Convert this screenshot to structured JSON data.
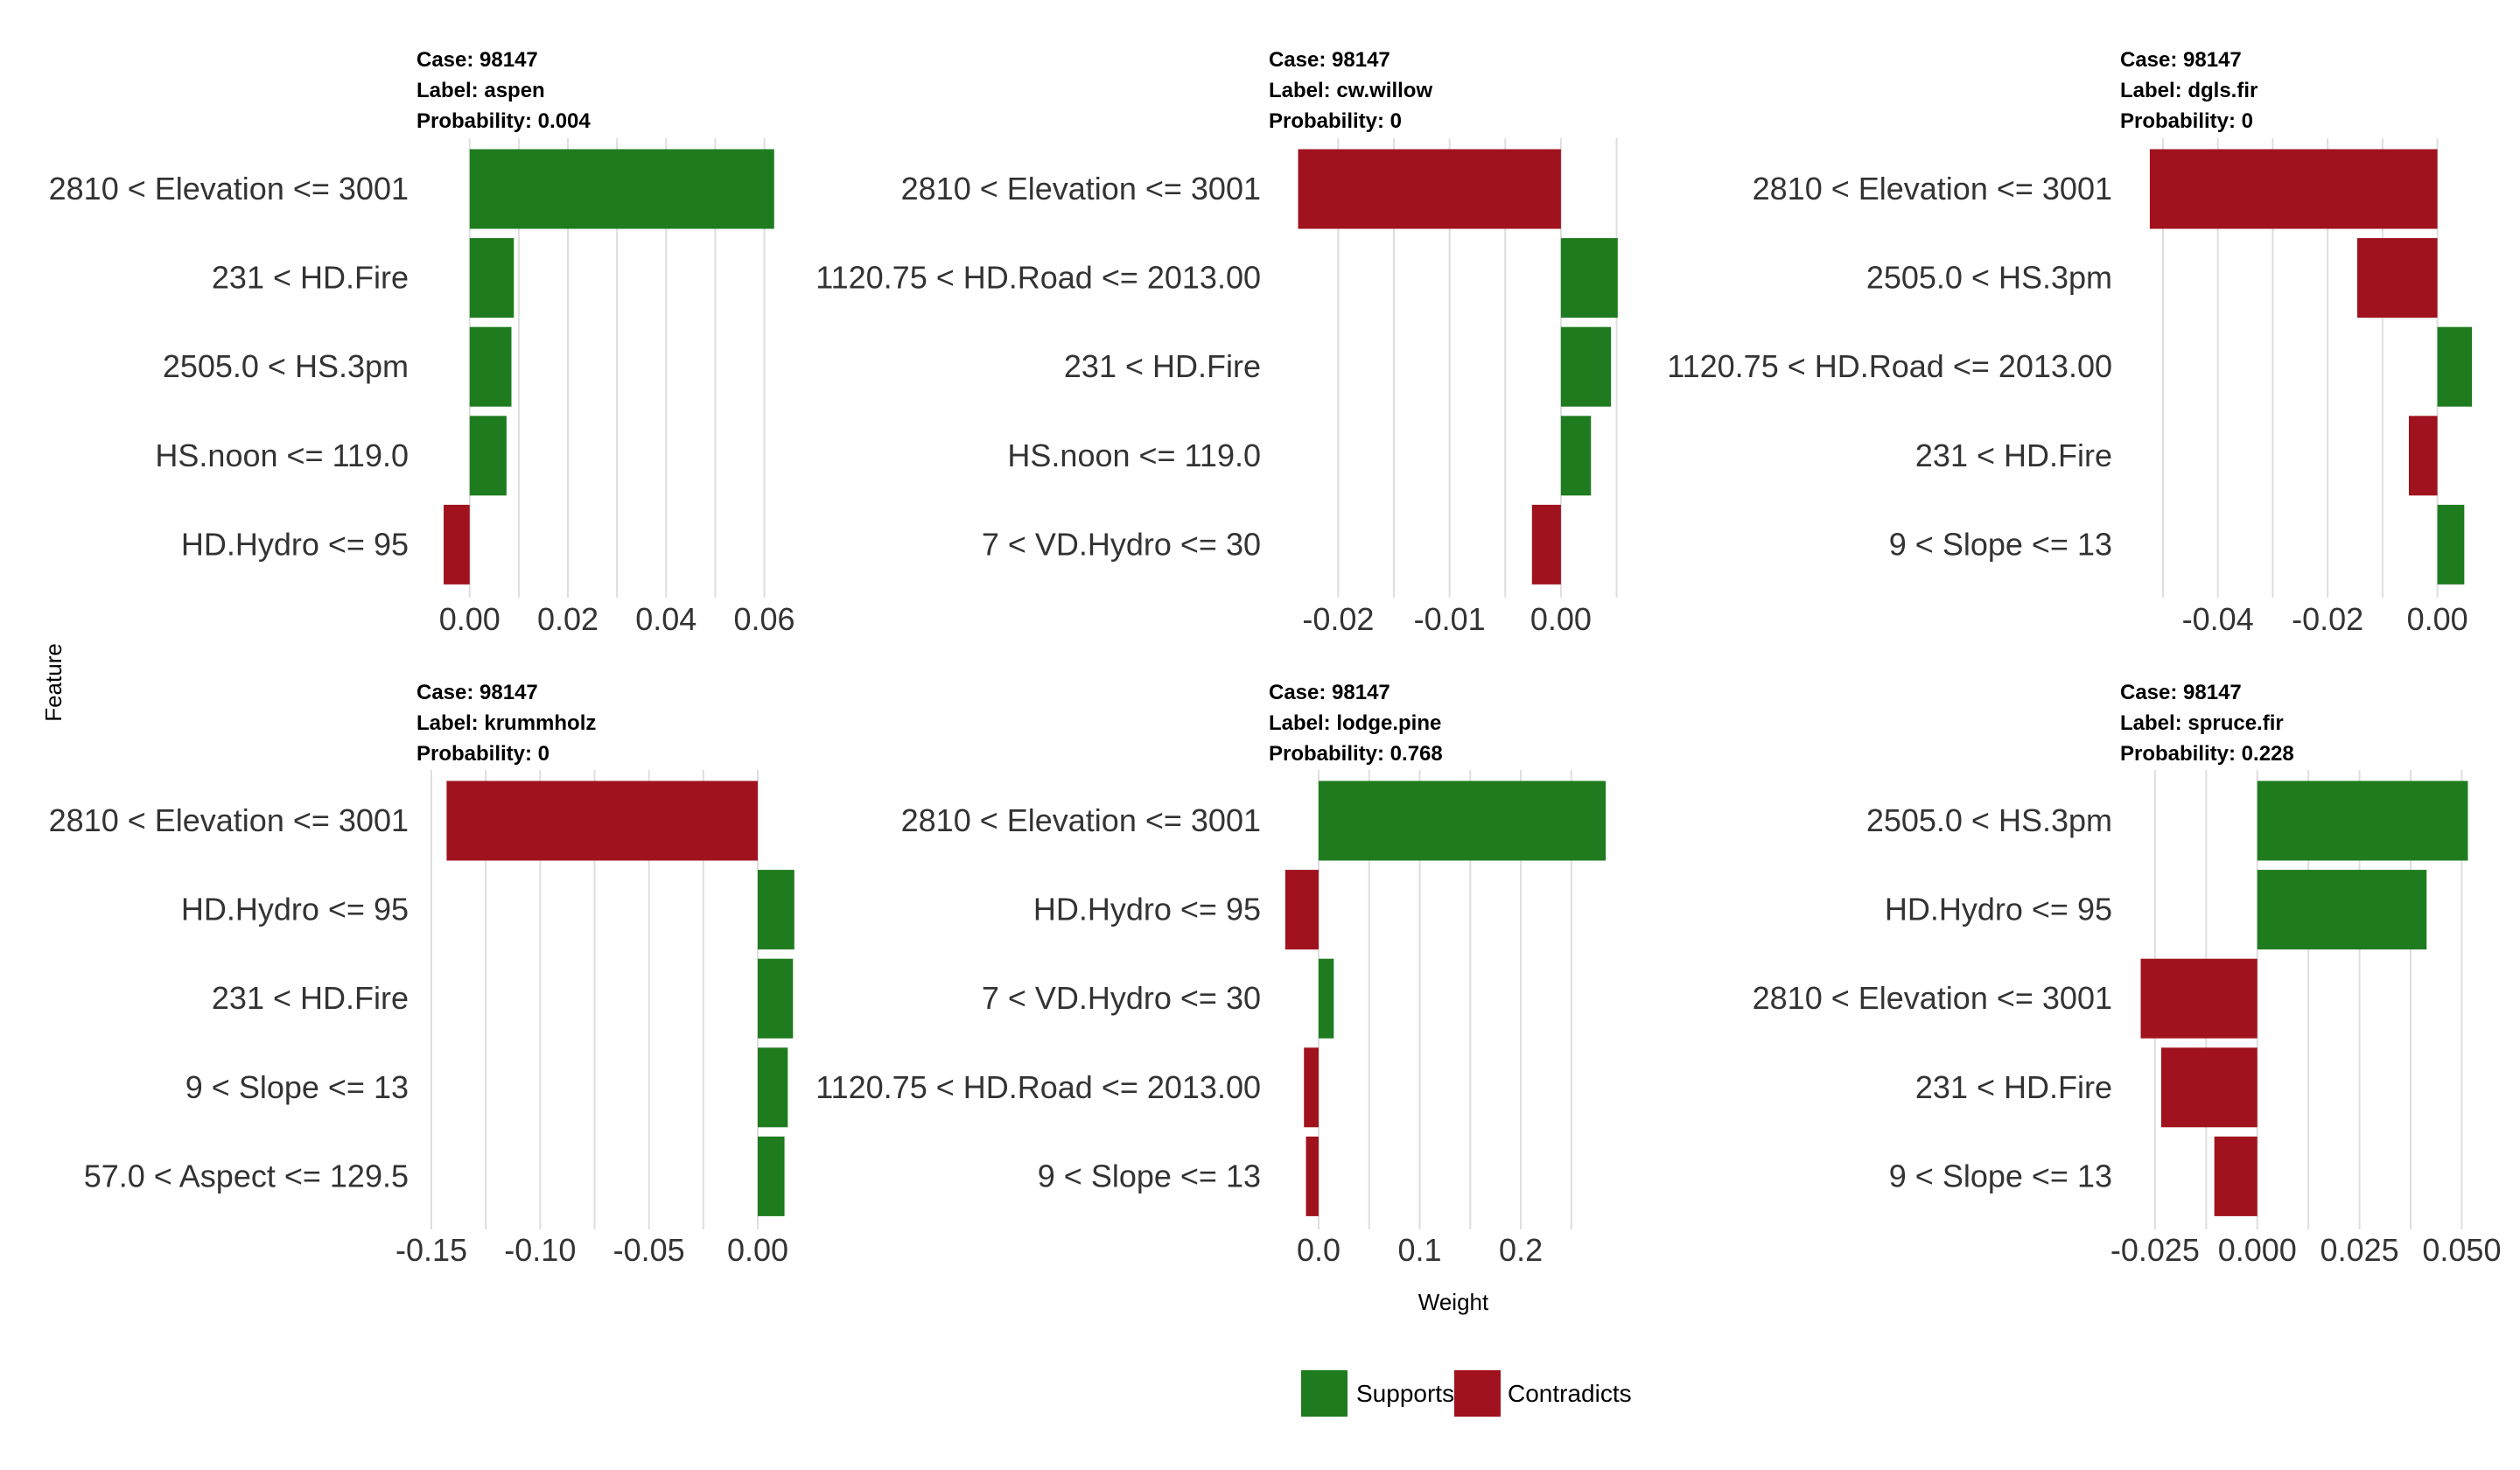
{
  "colors": {
    "supports": "#1e7b1e",
    "contradicts": "#a0121d",
    "grid": "#dedede"
  },
  "axis": {
    "xlabel": "Weight",
    "ylabel": "Feature"
  },
  "legend": {
    "placement": "bottom",
    "items": [
      {
        "label": "Supports",
        "color": "#1e7b1e"
      },
      {
        "label": "Contradicts",
        "color": "#a0121d"
      }
    ]
  },
  "chart_data": [
    {
      "type": "bar",
      "orientation": "horizontal",
      "title_lines": [
        "Case: 98147",
        "Label: aspen",
        "Probability: 0.004"
      ],
      "categories": [
        "2810 < Elevation <= 3001",
        "231 < HD.Fire",
        "2505.0 < HS.3pm",
        "HS.noon <= 119.0",
        "HD.Hydro <= 95"
      ],
      "values": [
        0.062,
        0.009,
        0.0085,
        0.0075,
        -0.0053
      ],
      "xlim": [
        -0.0078,
        0.0665
      ],
      "ticks": [
        0.0,
        0.02,
        0.04,
        0.06
      ],
      "tick_labels": [
        "0.00",
        "0.02",
        "0.04",
        "0.06"
      ],
      "grid": true
    },
    {
      "type": "bar",
      "orientation": "horizontal",
      "title_lines": [
        "Case: 98147",
        "Label: cw.willow",
        "Probability: 0"
      ],
      "categories": [
        "2810 < Elevation <= 3001",
        "1120.75 < HD.Road <= 2013.00",
        "231 < HD.Fire",
        "HS.noon <= 119.0",
        "7 < VD.Hydro <= 30"
      ],
      "values": [
        -0.0236,
        0.0051,
        0.0045,
        0.0027,
        -0.0026
      ],
      "xlim": [
        -0.0249,
        0.00535
      ],
      "ticks": [
        -0.02,
        -0.01,
        0.0
      ],
      "tick_labels": [
        "-0.02",
        "-0.01",
        "0.00"
      ],
      "grid": true
    },
    {
      "type": "bar",
      "orientation": "horizontal",
      "title_lines": [
        "Case: 98147",
        "Label: dgls.fir",
        "Probability: 0"
      ],
      "categories": [
        "2810 < Elevation <= 3001",
        "2505.0 < HS.3pm",
        "1120.75 < HD.Road <= 2013.00",
        "231 < HD.Fire",
        "9 < Slope <= 13"
      ],
      "values": [
        -0.0524,
        -0.0146,
        0.0063,
        -0.0052,
        0.0049
      ],
      "xlim": [
        -0.0551,
        0.0066
      ],
      "ticks": [
        -0.04,
        -0.02,
        0.0
      ],
      "tick_labels": [
        "-0.04",
        "-0.02",
        "0.00"
      ],
      "grid": true
    },
    {
      "type": "bar",
      "orientation": "horizontal",
      "title_lines": [
        "Case: 98147",
        "Label: krummholz",
        "Probability: 0"
      ],
      "categories": [
        "2810 < Elevation <= 3001",
        "HD.Hydro <= 95",
        "231 < HD.Fire",
        "9 < Slope <= 13",
        "57.0 < Aspect <= 129.5"
      ],
      "values": [
        -0.143,
        0.0168,
        0.0162,
        0.0138,
        0.0123
      ],
      "xlim": [
        -0.15,
        0.0177
      ],
      "ticks": [
        -0.15,
        -0.1,
        -0.05,
        0.0
      ],
      "tick_labels": [
        "-0.15",
        "-0.10",
        "-0.05",
        "0.00"
      ],
      "grid": true
    },
    {
      "type": "bar",
      "orientation": "horizontal",
      "title_lines": [
        "Case: 98147",
        "Label: lodge.pine",
        "Probability: 0.768"
      ],
      "categories": [
        "2810 < Elevation <= 3001",
        "HD.Hydro <= 95",
        "7 < VD.Hydro <= 30",
        "1120.75 < HD.Road <= 2013.00",
        "9 < Slope <= 13"
      ],
      "values": [
        0.284,
        -0.033,
        0.015,
        -0.0145,
        -0.0125
      ],
      "xlim": [
        -0.0346,
        0.2986
      ],
      "ticks": [
        0.0,
        0.1,
        0.2
      ],
      "tick_labels": [
        "0.0",
        "0.1",
        "0.2"
      ],
      "grid": true
    },
    {
      "type": "bar",
      "orientation": "horizontal",
      "title_lines": [
        "Case: 98147",
        "Label: spruce.fir",
        "Probability: 0.228"
      ],
      "categories": [
        "2505.0 < HS.3pm",
        "HD.Hydro <= 95",
        "2810 < Elevation <= 3001",
        "231 < HD.Fire",
        "9 < Slope <= 13"
      ],
      "values": [
        0.0515,
        0.0414,
        -0.0285,
        -0.0235,
        -0.0105
      ],
      "xlim": [
        -0.0299,
        0.0529
      ],
      "ticks": [
        -0.025,
        0.0,
        0.025,
        0.05
      ],
      "tick_labels": [
        "-0.025",
        "0.000",
        "0.025",
        "0.050"
      ],
      "grid": true
    }
  ]
}
